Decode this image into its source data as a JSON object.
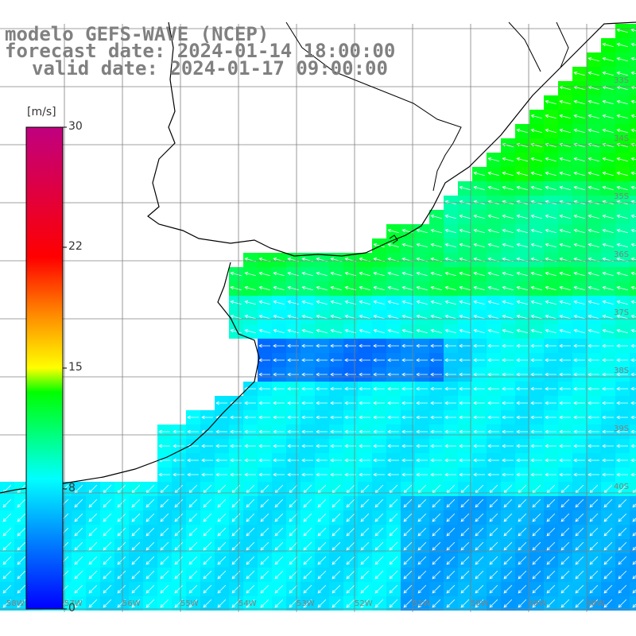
{
  "header": {
    "line1": "modelo GEFS-WAVE (NCEP)",
    "line2": "forecast date: 2024-01-14 18:00:00",
    "line3": "valid date: 2024-01-17 09:00:00"
  },
  "colorbar": {
    "unit": "[m/s]",
    "ticks": [
      "30",
      "22",
      "15",
      "8",
      "0"
    ],
    "min": 0,
    "max": 30,
    "colors": [
      "#0000ff",
      "#0080ff",
      "#00ffff",
      "#00ff00",
      "#ffff00",
      "#ff8000",
      "#ff0000",
      "#c00080"
    ]
  },
  "map": {
    "lat_labels": [
      "33S",
      "34S",
      "35S",
      "36S",
      "37S",
      "38S",
      "39S",
      "40S"
    ],
    "lon_labels": [
      "58W",
      "57W",
      "56W",
      "55W",
      "54W",
      "53W",
      "52W",
      "51W",
      "50W",
      "49W",
      "48W"
    ],
    "field": "wind speed",
    "arrow_color": "#ffffff",
    "coast_color": "#000000",
    "grid_color": "#808080"
  }
}
